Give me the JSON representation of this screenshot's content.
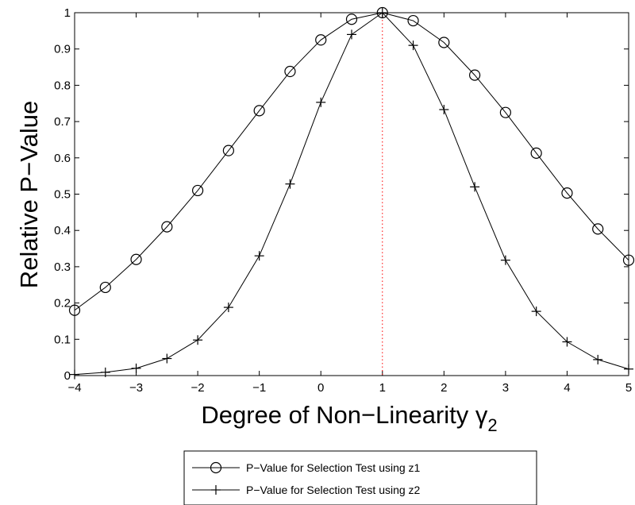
{
  "chart_data": {
    "type": "line",
    "xlabel": "Degree of Non−Linearity γ",
    "xlabel_subscript": "2",
    "ylabel": "Relative P−Value",
    "xlim": [
      -4,
      5
    ],
    "ylim": [
      0,
      1
    ],
    "x_ticks": [
      -4,
      -3,
      -2,
      -1,
      0,
      1,
      2,
      3,
      4,
      5
    ],
    "x_tick_labels": [
      "−4",
      "−3",
      "−2",
      "−1",
      "0",
      "1",
      "2",
      "3",
      "4",
      "5"
    ],
    "y_ticks": [
      0,
      0.1,
      0.2,
      0.3,
      0.4,
      0.5,
      0.6,
      0.7,
      0.8,
      0.9,
      1
    ],
    "y_tick_labels": [
      "0",
      "0.1",
      "0.2",
      "0.3",
      "0.4",
      "0.5",
      "0.6",
      "0.7",
      "0.8",
      "0.9",
      "1"
    ],
    "grid": false,
    "legend_position": "below",
    "reference_line": {
      "x": 1,
      "color": "#ff0000",
      "style": "dotted"
    },
    "series": [
      {
        "name": "P−Value for Selection Test using z1",
        "marker": "circle",
        "color": "#000000",
        "x": [
          -4,
          -3.5,
          -3,
          -2.5,
          -2,
          -1.5,
          -1,
          -0.5,
          0,
          0.5,
          1,
          1.5,
          2,
          2.5,
          3,
          3.5,
          4,
          4.5,
          5
        ],
        "values": [
          0.18,
          0.243,
          0.32,
          0.41,
          0.51,
          0.62,
          0.73,
          0.838,
          0.925,
          0.982,
          1.0,
          0.978,
          0.918,
          0.828,
          0.725,
          0.613,
          0.503,
          0.404,
          0.318
        ]
      },
      {
        "name": "P−Value for Selection Test using z2",
        "marker": "plus",
        "color": "#000000",
        "x": [
          -4,
          -3.5,
          -3,
          -2.5,
          -2,
          -1.5,
          -1,
          -0.5,
          0,
          0.5,
          1,
          1.5,
          2,
          2.5,
          3,
          3.5,
          4,
          4.5,
          5
        ],
        "values": [
          0.003,
          0.009,
          0.02,
          0.047,
          0.098,
          0.188,
          0.33,
          0.528,
          0.753,
          0.94,
          1.0,
          0.91,
          0.733,
          0.52,
          0.318,
          0.177,
          0.093,
          0.044,
          0.018
        ]
      }
    ]
  }
}
